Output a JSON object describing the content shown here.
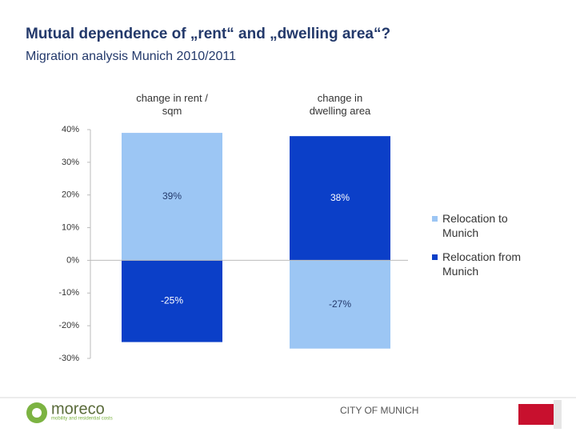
{
  "chart_data": {
    "type": "bar",
    "stacked": true,
    "title": "Mutual dependence of „rent“ and „dwelling area“?",
    "subtitle": "Migration analysis Munich 2010/2011",
    "categories": [
      "change in rent / sqm",
      "change in dwelling area"
    ],
    "series": [
      {
        "name": "Relocation to Munich",
        "color": "#9cc6f4",
        "values": [
          39,
          -27
        ],
        "value_labels": [
          "39%",
          "-27%"
        ]
      },
      {
        "name": "Relocation from Munich",
        "color": "#0b3fc8",
        "values": [
          -25,
          38
        ],
        "value_labels": [
          "-25%",
          "38%"
        ]
      }
    ],
    "ylim": [
      -30,
      40
    ],
    "yticks": [
      {
        "value": -30,
        "label": "-30%"
      },
      {
        "value": -20,
        "label": "-20%"
      },
      {
        "value": -10,
        "label": "-10%"
      },
      {
        "value": 0,
        "label": "0%"
      },
      {
        "value": 10,
        "label": "10%"
      },
      {
        "value": 20,
        "label": "20%"
      },
      {
        "value": 30,
        "label": "30%"
      },
      {
        "value": 40,
        "label": "40%"
      }
    ],
    "legend": "right"
  },
  "footer": {
    "logo": "moreco",
    "logo_tagline": "mobility and residential costs",
    "center": "CITY OF MUNICH"
  }
}
